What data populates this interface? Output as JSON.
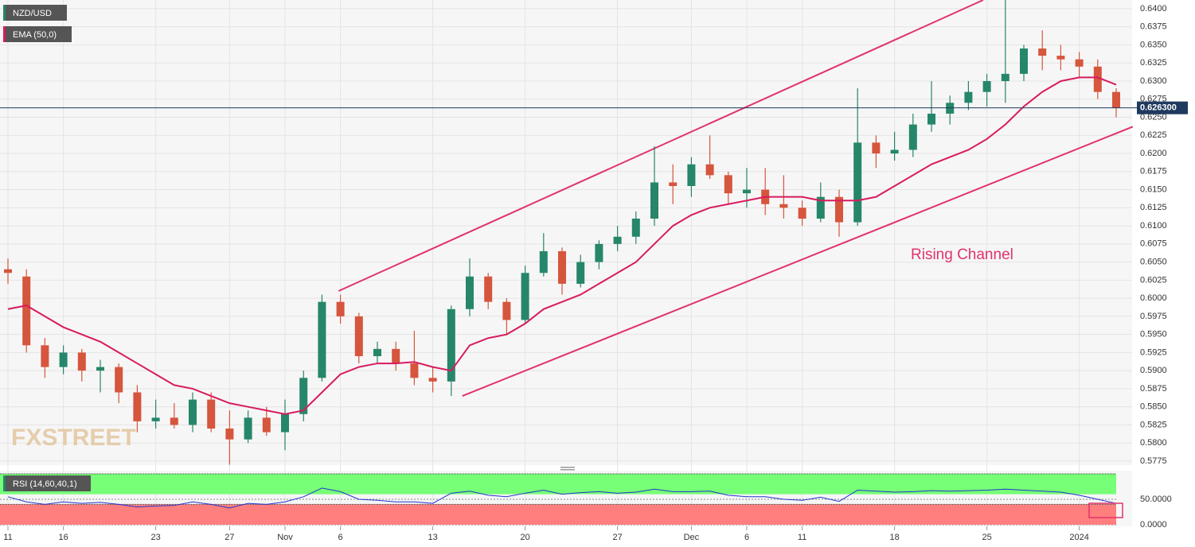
{
  "chart_data": [
    {
      "type": "candlestick",
      "legend": [
        "NZD/USD",
        "EMA (50,0)"
      ],
      "watermark": "FXSTREET",
      "annotation": "Rising Channel",
      "categories": [
        "11",
        null,
        null,
        "16",
        null,
        null,
        null,
        null,
        "23",
        null,
        null,
        null,
        "27",
        null,
        null,
        "Nov",
        null,
        null,
        "6",
        null,
        null,
        null,
        null,
        "13",
        null,
        null,
        null,
        null,
        "20",
        null,
        null,
        null,
        null,
        "27",
        null,
        null,
        null,
        "Dec",
        null,
        null,
        "6",
        null,
        null,
        "11",
        null,
        null,
        null,
        null,
        "18",
        null,
        null,
        null,
        null,
        "25",
        null,
        null,
        null,
        null,
        "2024",
        null,
        null
      ],
      "open": [
        0.604,
        0.603,
        0.5935,
        0.5905,
        0.5925,
        0.59,
        0.5905,
        0.587,
        0.583,
        0.5835,
        0.5825,
        0.586,
        0.582,
        0.5805,
        0.5835,
        0.5815,
        0.584,
        0.589,
        0.5995,
        0.5975,
        0.592,
        0.593,
        0.591,
        0.589,
        0.5885,
        0.5985,
        0.603,
        0.5995,
        0.597,
        0.6035,
        0.6065,
        0.602,
        0.605,
        0.6075,
        0.6085,
        0.611,
        0.616,
        0.6155,
        0.6185,
        0.617,
        0.6145,
        0.615,
        0.613,
        0.6125,
        0.611,
        0.614,
        0.6105,
        0.6215,
        0.62,
        0.6205,
        0.624,
        0.6255,
        0.627,
        0.6285,
        0.63,
        0.631,
        0.6345,
        0.6335,
        0.633,
        0.632,
        0.6285
      ],
      "high": [
        0.6055,
        0.604,
        0.5945,
        0.5935,
        0.593,
        0.5915,
        0.591,
        0.588,
        0.586,
        0.5855,
        0.587,
        0.587,
        0.5845,
        0.5845,
        0.585,
        0.586,
        0.59,
        0.6005,
        0.6005,
        0.598,
        0.594,
        0.594,
        0.5955,
        0.5905,
        0.599,
        0.6055,
        0.6035,
        0.6,
        0.6045,
        0.609,
        0.607,
        0.606,
        0.608,
        0.61,
        0.612,
        0.621,
        0.6185,
        0.6195,
        0.6225,
        0.6175,
        0.618,
        0.618,
        0.617,
        0.6135,
        0.616,
        0.615,
        0.629,
        0.6225,
        0.623,
        0.6255,
        0.63,
        0.628,
        0.63,
        0.631,
        0.6415,
        0.635,
        0.637,
        0.635,
        0.634,
        0.633,
        0.629
      ],
      "low": [
        0.602,
        0.5925,
        0.589,
        0.5895,
        0.5885,
        0.587,
        0.5855,
        0.5815,
        0.582,
        0.582,
        0.5815,
        0.5815,
        0.577,
        0.58,
        0.581,
        0.579,
        0.583,
        0.5885,
        0.5965,
        0.591,
        0.591,
        0.59,
        0.588,
        0.587,
        0.5865,
        0.5975,
        0.5985,
        0.595,
        0.5965,
        0.603,
        0.6005,
        0.6015,
        0.604,
        0.6065,
        0.6075,
        0.61,
        0.613,
        0.614,
        0.6165,
        0.613,
        0.6125,
        0.6115,
        0.611,
        0.61,
        0.6105,
        0.6085,
        0.61,
        0.618,
        0.619,
        0.6195,
        0.623,
        0.624,
        0.626,
        0.6265,
        0.627,
        0.63,
        0.6315,
        0.6315,
        0.6305,
        0.6275,
        0.625
      ],
      "close": [
        0.6035,
        0.5935,
        0.5905,
        0.5925,
        0.59,
        0.5905,
        0.587,
        0.583,
        0.5835,
        0.5825,
        0.586,
        0.582,
        0.5805,
        0.5835,
        0.5815,
        0.584,
        0.589,
        0.5995,
        0.5975,
        0.592,
        0.593,
        0.591,
        0.589,
        0.5885,
        0.5985,
        0.603,
        0.5995,
        0.597,
        0.6035,
        0.6065,
        0.602,
        0.605,
        0.6075,
        0.6085,
        0.611,
        0.616,
        0.6155,
        0.6185,
        0.617,
        0.6145,
        0.615,
        0.613,
        0.6125,
        0.611,
        0.614,
        0.6105,
        0.6215,
        0.62,
        0.6205,
        0.624,
        0.6255,
        0.627,
        0.6285,
        0.63,
        0.631,
        0.6345,
        0.6335,
        0.633,
        0.632,
        0.6285,
        0.6263
      ],
      "up_color": "#26866a",
      "down_color": "#d6553d",
      "series": [
        {
          "name": "EMA (50,0)",
          "color": "#d81b60",
          "values": [
            0.5985,
            0.599,
            0.5975,
            0.596,
            0.595,
            0.594,
            0.5925,
            0.591,
            0.5895,
            0.588,
            0.5875,
            0.5865,
            0.5855,
            0.585,
            0.5845,
            0.584,
            0.5845,
            0.587,
            0.5895,
            0.5905,
            0.591,
            0.591,
            0.5912,
            0.5905,
            0.59,
            0.5935,
            0.5945,
            0.595,
            0.5965,
            0.5985,
            0.5995,
            0.6005,
            0.602,
            0.6035,
            0.605,
            0.6075,
            0.61,
            0.6115,
            0.6125,
            0.613,
            0.6135,
            0.614,
            0.614,
            0.614,
            0.6135,
            0.6135,
            0.6135,
            0.614,
            0.6155,
            0.617,
            0.6185,
            0.6195,
            0.6205,
            0.622,
            0.624,
            0.6265,
            0.6285,
            0.63,
            0.6305,
            0.6305,
            0.6295
          ]
        }
      ],
      "channels": [
        {
          "color": "#e0336b",
          "x": [
            17.9,
            52.8
          ],
          "y": [
            0.601,
            0.6412
          ]
        },
        {
          "color": "#e0336b",
          "x": [
            24.6,
            60.9
          ],
          "y": [
            0.5865,
            0.6237
          ]
        }
      ],
      "current_price": {
        "value": 0.6263,
        "label": "0.626300"
      },
      "ylim": [
        0.57695,
        0.6412
      ],
      "yticks": [
        {
          "value": 0.64,
          "label": "0.6400"
        },
        {
          "value": 0.6375,
          "label": "0.6375"
        },
        {
          "value": 0.635,
          "label": "0.6350"
        },
        {
          "value": 0.6325,
          "label": "0.6325"
        },
        {
          "value": 0.63,
          "label": "0.6300"
        },
        {
          "value": 0.6275,
          "label": "0.6275"
        },
        {
          "value": 0.625,
          "label": "0.6250"
        },
        {
          "value": 0.6225,
          "label": "0.6225"
        },
        {
          "value": 0.62,
          "label": "0.6200"
        },
        {
          "value": 0.6175,
          "label": "0.6175"
        },
        {
          "value": 0.615,
          "label": "0.6150"
        },
        {
          "value": 0.6125,
          "label": "0.6125"
        },
        {
          "value": 0.61,
          "label": "0.6100"
        },
        {
          "value": 0.6075,
          "label": "0.6075"
        },
        {
          "value": 0.605,
          "label": "0.6050"
        },
        {
          "value": 0.6025,
          "label": "0.6025"
        },
        {
          "value": 0.6,
          "label": "0.6000"
        },
        {
          "value": 0.5975,
          "label": "0.5975"
        },
        {
          "value": 0.595,
          "label": "0.5950"
        },
        {
          "value": 0.5925,
          "label": "0.5925"
        },
        {
          "value": 0.59,
          "label": "0.5900"
        },
        {
          "value": 0.5875,
          "label": "0.5875"
        },
        {
          "value": 0.585,
          "label": "0.5850"
        },
        {
          "value": 0.5825,
          "label": "0.5825"
        },
        {
          "value": 0.58,
          "label": "0.5800"
        },
        {
          "value": 0.5775,
          "label": "0.5775"
        }
      ],
      "grid": true
    },
    {
      "type": "line",
      "title": "RSI (14,60,40,1)",
      "series": [
        {
          "name": "RSI (14,60,40,1)",
          "color": "#2233cc",
          "values": [
            55,
            45,
            40,
            45,
            42,
            44,
            40,
            35,
            37,
            38,
            45,
            40,
            33,
            42,
            40,
            45,
            55,
            72,
            65,
            50,
            48,
            45,
            45,
            42,
            62,
            66,
            58,
            55,
            62,
            68,
            60,
            63,
            65,
            62,
            64,
            70,
            65,
            65,
            66,
            58,
            55,
            55,
            50,
            48,
            54,
            46,
            68,
            66,
            64,
            65,
            67,
            66,
            67,
            68,
            70,
            68,
            66,
            64,
            58,
            50,
            42
          ]
        }
      ],
      "bands": [
        {
          "from": 60,
          "to": 100,
          "color": "#77ff77"
        },
        {
          "from": 0,
          "to": 40,
          "color": "#ff7f7f"
        }
      ],
      "ylim": [
        0,
        100
      ],
      "yticks": [
        {
          "value": 50,
          "label": "50.0000"
        },
        {
          "value": 0,
          "label": "0.0000"
        }
      ]
    }
  ]
}
